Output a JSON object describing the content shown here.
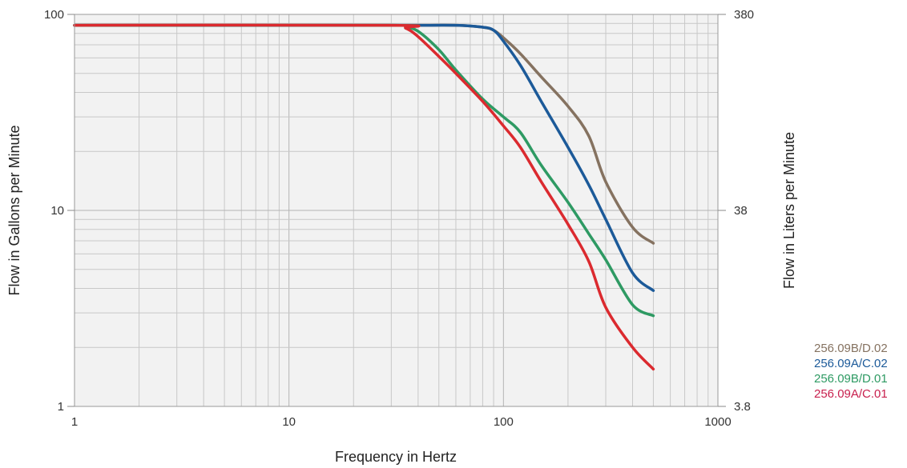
{
  "colors": {
    "s1": "#857260",
    "s2": "#1c5a99",
    "s3": "#2e9a63",
    "s4": "#db2a2f",
    "legend1": "#857260",
    "legend2": "#1c5a99",
    "legend3": "#2e9a63",
    "legend4": "#c8204e"
  },
  "chart_data": {
    "type": "line",
    "title": "",
    "xlabel": "Frequency in Hertz",
    "ylabel": "Flow in Gallons per Minute",
    "y2label": "Flow in Liters per Minute",
    "xscale": "log",
    "yscale": "log",
    "xlim": [
      1,
      1000
    ],
    "ylim": [
      1,
      100
    ],
    "grid": true,
    "x_ticks": [
      "1",
      "10",
      "100",
      "1000"
    ],
    "y_ticks": [
      "1",
      "10",
      "100"
    ],
    "y2_ticks": [
      "3.8",
      "38",
      "380"
    ],
    "legend_position": "right",
    "series": [
      {
        "name": "256.09B/D.02",
        "x": [
          1,
          30,
          60,
          80,
          90,
          100,
          120,
          150,
          200,
          250,
          300,
          400,
          500
        ],
        "y": [
          88,
          88,
          88,
          86,
          83,
          76,
          63,
          48,
          34,
          24,
          14,
          8.2,
          6.8
        ]
      },
      {
        "name": "256.09A/C.02",
        "x": [
          1,
          30,
          60,
          80,
          90,
          100,
          120,
          150,
          200,
          250,
          300,
          400,
          500
        ],
        "y": [
          88,
          88,
          88,
          86,
          83,
          73,
          55,
          36,
          21,
          13.5,
          9,
          4.8,
          3.9
        ]
      },
      {
        "name": "256.09B/D.01",
        "x": [
          1,
          30,
          35,
          40,
          50,
          60,
          80,
          100,
          120,
          150,
          200,
          250,
          300,
          400,
          500
        ],
        "y": [
          88,
          88,
          86,
          82,
          66,
          52,
          37,
          30,
          25,
          17,
          11,
          7.6,
          5.6,
          3.3,
          2.9
        ]
      },
      {
        "name": "256.09A/C.01",
        "x": [
          1,
          30,
          35,
          40,
          50,
          60,
          80,
          100,
          120,
          150,
          200,
          250,
          300,
          400,
          500
        ],
        "y": [
          88,
          88,
          85,
          77,
          61,
          50,
          36,
          27,
          21,
          14,
          8.5,
          5.5,
          3.2,
          2.0,
          1.55
        ]
      }
    ]
  }
}
